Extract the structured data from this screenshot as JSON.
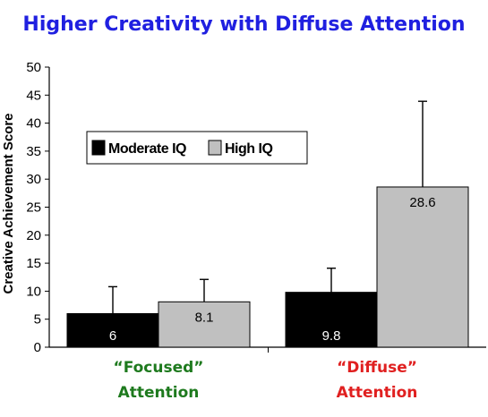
{
  "chart_data": {
    "type": "bar",
    "title": "Higher Creativity with Diffuse Attention",
    "ylabel": "Creative Achievement Score",
    "xlabel": "",
    "ylim": [
      0,
      50
    ],
    "yticks": [
      "0",
      "5",
      "10",
      "15",
      "20",
      "25",
      "30",
      "35",
      "40",
      "45",
      "50"
    ],
    "grid": false,
    "legend_position": "upper-left",
    "categories": [
      {
        "line1": "“Focused”",
        "line2": "Attention",
        "color": "#1e7a1e"
      },
      {
        "line1": "“Diffuse”",
        "line2": "Attention",
        "color": "#e02020"
      }
    ],
    "series": [
      {
        "name": "Moderate IQ",
        "color": "#000000",
        "label_color": "#ffffff",
        "values": [
          6,
          9.8
        ],
        "labels": [
          "6",
          "9.8"
        ],
        "error_upper": [
          10.8,
          14.1
        ]
      },
      {
        "name": "High IQ",
        "color": "#c0c0c0",
        "label_color": "#000000",
        "values": [
          8.1,
          28.6
        ],
        "labels": [
          "8.1",
          "28.6"
        ],
        "error_upper": [
          12.1,
          43.9
        ]
      }
    ]
  }
}
